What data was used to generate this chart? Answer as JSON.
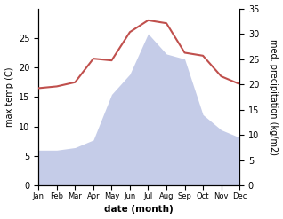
{
  "months": [
    "Jan",
    "Feb",
    "Mar",
    "Apr",
    "May",
    "Jun",
    "Jul",
    "Aug",
    "Sep",
    "Oct",
    "Nov",
    "Dec"
  ],
  "x": [
    0,
    1,
    2,
    3,
    4,
    5,
    6,
    7,
    8,
    9,
    10,
    11
  ],
  "temperature": [
    16.5,
    16.8,
    17.5,
    21.5,
    21.2,
    26.0,
    28.0,
    27.5,
    22.5,
    22.0,
    18.5,
    17.2
  ],
  "precipitation": [
    7.0,
    7.0,
    7.5,
    9.0,
    18.0,
    22.0,
    30.0,
    26.0,
    25.0,
    14.0,
    11.0,
    9.5
  ],
  "temp_color": "#c0504d",
  "precip_fill_color": "#c5cce8",
  "ylabel_left": "max temp (C)",
  "ylabel_right": "med. precipitation (kg/m2)",
  "xlabel": "date (month)",
  "ylim_left": [
    0,
    30
  ],
  "ylim_right": [
    0,
    35
  ],
  "yticks_left": [
    0,
    5,
    10,
    15,
    20,
    25
  ],
  "yticks_right": [
    0,
    5,
    10,
    15,
    20,
    25,
    30,
    35
  ],
  "background_color": "#ffffff"
}
